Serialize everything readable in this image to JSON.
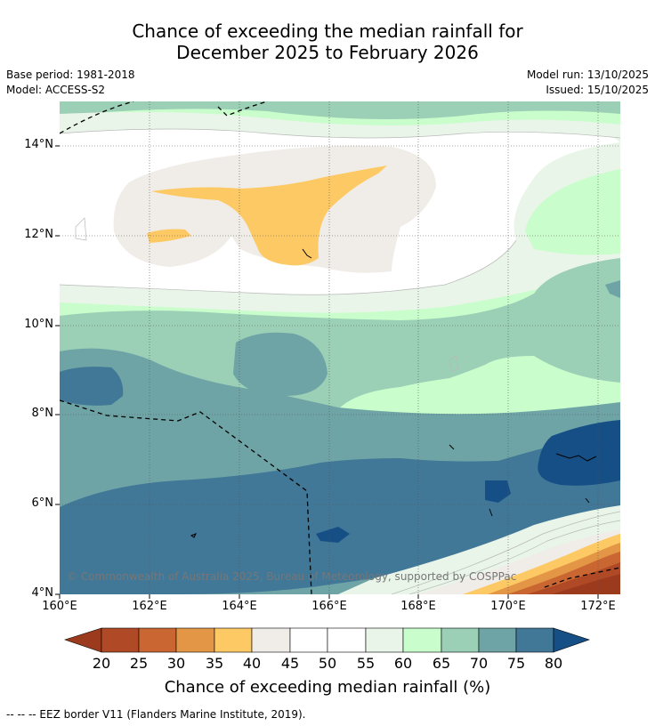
{
  "title": {
    "line1": "Chance of exceeding the median rainfall for",
    "line2": "December 2025 to February 2026"
  },
  "meta": {
    "base_period": "Base period: 1981-2018",
    "model": "Model: ACCESS-S2",
    "model_run": "Model run: 13/10/2025",
    "issued": "Issued: 15/10/2025"
  },
  "map": {
    "lat_labels": [
      "14°N",
      "12°N",
      "10°N",
      "8°N",
      "6°N",
      "4°N"
    ],
    "lon_labels": [
      "160°E",
      "162°E",
      "164°E",
      "166°E",
      "168°E",
      "170°E",
      "172°E"
    ],
    "copyright": "© Commonwealth of Australia 2025, Bureau of Meteorology, supported by COSPPac"
  },
  "colorbar": {
    "title": "Chance of exceeding median rainfall (%)",
    "ticks": [
      "20",
      "25",
      "30",
      "35",
      "40",
      "45",
      "50",
      "55",
      "60",
      "65",
      "70",
      "75",
      "80"
    ],
    "colors": {
      "lt20": "#9c3a1e",
      "20_25": "#b04a26",
      "25_30": "#c96631",
      "30_35": "#e29646",
      "35_40": "#fdc964",
      "40_45": "#f0ece7",
      "45_50": "#ffffff",
      "50_55": "#ffffff",
      "55_60": "#e9f5e9",
      "60_65": "#c9fdcb",
      "65_70": "#9bcfb6",
      "70_75": "#6ea4a5",
      "75_80": "#417797",
      "gt80": "#164f86"
    }
  },
  "footnote": "--  --  -- EEZ border V11 (Flanders Marine Institute, 2019)."
}
